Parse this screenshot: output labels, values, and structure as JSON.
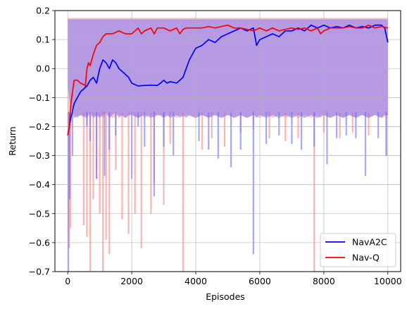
{
  "chart_data": {
    "type": "line",
    "title": "",
    "xlabel": "Episodes",
    "ylabel": "Return",
    "xlim": [
      -400,
      10400
    ],
    "ylim": [
      -0.7,
      0.2
    ],
    "xticks": [
      0,
      2000,
      4000,
      6000,
      8000,
      10000
    ],
    "yticks": [
      -0.7,
      -0.6,
      -0.5,
      -0.4,
      -0.3,
      -0.2,
      -0.1,
      0.0,
      0.1,
      0.2
    ],
    "xtick_labels": [
      "0",
      "2000",
      "4000",
      "6000",
      "8000",
      "10000"
    ],
    "ytick_labels": [
      "−0.7",
      "−0.6",
      "−0.5",
      "−0.4",
      "−0.3",
      "−0.2",
      "−0.1",
      "0.0",
      "0.1",
      "0.2"
    ],
    "grid": true,
    "legend_position": "bottom-right",
    "series": [
      {
        "name": "NavA2C",
        "color": "#0000ff",
        "band_color": "#6e6eff",
        "x": [
          0,
          100,
          200,
          400,
          600,
          700,
          800,
          900,
          1000,
          1100,
          1200,
          1300,
          1400,
          1500,
          1600,
          1700,
          1800,
          1900,
          2000,
          2200,
          2400,
          2600,
          2800,
          2900,
          3000,
          3100,
          3200,
          3400,
          3500,
          3600,
          3700,
          3800,
          4000,
          4200,
          4400,
          4600,
          4800,
          5000,
          5200,
          5400,
          5600,
          5800,
          5900,
          6000,
          6200,
          6400,
          6600,
          6800,
          7000,
          7200,
          7400,
          7600,
          7800,
          8000,
          8200,
          8400,
          8600,
          8800,
          9000,
          9200,
          9400,
          9600,
          9800,
          9900,
          10000
        ],
        "y": [
          -0.23,
          -0.17,
          -0.12,
          -0.08,
          -0.06,
          -0.04,
          -0.03,
          -0.05,
          0.0,
          0.03,
          0.02,
          0.0,
          0.03,
          0.02,
          0.0,
          -0.01,
          -0.02,
          -0.03,
          -0.05,
          -0.06,
          -0.058,
          -0.057,
          -0.058,
          -0.05,
          -0.04,
          -0.05,
          -0.045,
          -0.05,
          -0.04,
          -0.03,
          0.0,
          0.03,
          0.07,
          0.08,
          0.1,
          0.09,
          0.11,
          0.12,
          0.13,
          0.14,
          0.13,
          0.14,
          0.08,
          0.1,
          0.11,
          0.12,
          0.11,
          0.13,
          0.13,
          0.14,
          0.13,
          0.15,
          0.14,
          0.15,
          0.14,
          0.145,
          0.14,
          0.15,
          0.14,
          0.145,
          0.14,
          0.15,
          0.15,
          0.14,
          0.09
        ],
        "band_upper": 0.17,
        "band_lower": [
          -0.06,
          -0.14,
          -0.17,
          -0.16,
          -0.17,
          -0.15,
          -0.17,
          -0.16,
          -0.17,
          -0.16,
          -0.15,
          -0.17,
          -0.16,
          -0.15,
          -0.17,
          -0.16,
          -0.17,
          -0.16,
          -0.16,
          -0.17,
          -0.16,
          -0.17,
          -0.16,
          -0.16,
          -0.17,
          -0.16,
          -0.17,
          -0.16,
          -0.17,
          -0.16,
          -0.17,
          -0.16,
          -0.17,
          -0.16,
          -0.17,
          -0.16,
          -0.17,
          -0.16,
          -0.17,
          -0.16,
          -0.17,
          -0.16,
          -0.17,
          -0.16,
          -0.17,
          -0.16,
          -0.17,
          -0.16,
          -0.17,
          -0.16,
          -0.17,
          -0.16,
          -0.17,
          -0.16,
          -0.17,
          -0.16,
          -0.17,
          -0.16,
          -0.17,
          -0.16,
          -0.17,
          -0.16,
          -0.17,
          -0.16,
          -0.16
        ],
        "spikes": [
          [
            20,
            -0.7
          ],
          [
            60,
            -0.45
          ],
          [
            150,
            -0.3
          ],
          [
            600,
            -0.2
          ],
          [
            700,
            -0.25
          ],
          [
            900,
            -0.38
          ],
          [
            1150,
            -0.37
          ],
          [
            1300,
            -0.28
          ],
          [
            1500,
            -0.23
          ],
          [
            2000,
            -0.38
          ],
          [
            2200,
            -0.2
          ],
          [
            2400,
            -0.27
          ],
          [
            2700,
            -0.44
          ],
          [
            3000,
            -0.27
          ],
          [
            3300,
            -0.3
          ],
          [
            4100,
            -0.25
          ],
          [
            4400,
            -0.28
          ],
          [
            4700,
            -0.31
          ],
          [
            5100,
            -0.34
          ],
          [
            5400,
            -0.28
          ],
          [
            5800,
            -0.64
          ],
          [
            6200,
            -0.26
          ],
          [
            6600,
            -0.23
          ],
          [
            7000,
            -0.26
          ],
          [
            7300,
            -0.28
          ],
          [
            7700,
            -0.27
          ],
          [
            8100,
            -0.33
          ],
          [
            8400,
            -0.24
          ],
          [
            8700,
            -0.23
          ],
          [
            9000,
            -0.24
          ],
          [
            9300,
            -0.37
          ],
          [
            9700,
            -0.24
          ],
          [
            9950,
            -0.3
          ]
        ]
      },
      {
        "name": "Nav-Q",
        "color": "#ff0000",
        "band_color": "#ff8080",
        "x": [
          0,
          50,
          100,
          200,
          300,
          400,
          500,
          550,
          600,
          650,
          700,
          800,
          900,
          1000,
          1100,
          1200,
          1400,
          1600,
          1800,
          2000,
          2200,
          2300,
          2400,
          2600,
          2700,
          2800,
          3000,
          3200,
          3400,
          3500,
          3600,
          3700,
          4000,
          4200,
          4400,
          4600,
          4800,
          5000,
          5200,
          5400,
          5600,
          5800,
          6000,
          6200,
          6400,
          6600,
          6800,
          7000,
          7200,
          7400,
          7600,
          7800,
          7900,
          8000,
          8200,
          8400,
          8600,
          8800,
          9000,
          9200,
          9400,
          9600,
          9800,
          10000
        ],
        "y": [
          -0.23,
          -0.2,
          -0.12,
          -0.04,
          -0.04,
          -0.05,
          -0.055,
          -0.06,
          0.0,
          0.02,
          0.01,
          0.05,
          0.08,
          0.09,
          0.11,
          0.12,
          0.12,
          0.13,
          0.12,
          0.12,
          0.14,
          0.12,
          0.13,
          0.14,
          0.12,
          0.14,
          0.14,
          0.13,
          0.14,
          0.12,
          0.135,
          0.14,
          0.14,
          0.14,
          0.145,
          0.14,
          0.145,
          0.15,
          0.14,
          0.14,
          0.135,
          0.13,
          0.14,
          0.13,
          0.14,
          0.13,
          0.135,
          0.14,
          0.135,
          0.14,
          0.13,
          0.14,
          0.12,
          0.13,
          0.14,
          0.14,
          0.14,
          0.145,
          0.14,
          0.14,
          0.15,
          0.14,
          0.145,
          0.14
        ],
        "band_upper": 0.175,
        "spikes": [
          [
            40,
            -0.62
          ],
          [
            80,
            -0.55
          ],
          [
            500,
            -0.54
          ],
          [
            600,
            -0.58
          ],
          [
            700,
            -0.72
          ],
          [
            800,
            -0.45
          ],
          [
            900,
            -0.38
          ],
          [
            1000,
            -0.5
          ],
          [
            1100,
            -0.7
          ],
          [
            1200,
            -0.59
          ],
          [
            1300,
            -0.64
          ],
          [
            1500,
            -0.35
          ],
          [
            1700,
            -0.52
          ],
          [
            1900,
            -0.57
          ],
          [
            2100,
            -0.5
          ],
          [
            2300,
            -0.62
          ],
          [
            2600,
            -0.5
          ],
          [
            2700,
            -0.4
          ],
          [
            3000,
            -0.47
          ],
          [
            3200,
            -0.26
          ],
          [
            3600,
            -0.72
          ],
          [
            4200,
            -0.28
          ],
          [
            4500,
            -0.24
          ],
          [
            4900,
            -0.27
          ],
          [
            5400,
            -0.22
          ],
          [
            5800,
            -0.21
          ],
          [
            6300,
            -0.24
          ],
          [
            6800,
            -0.25
          ],
          [
            7200,
            -0.24
          ],
          [
            7700,
            -0.72
          ],
          [
            8000,
            -0.22
          ],
          [
            8500,
            -0.24
          ],
          [
            8900,
            -0.22
          ],
          [
            9400,
            -0.23
          ],
          [
            9950,
            -0.3
          ]
        ]
      }
    ]
  }
}
